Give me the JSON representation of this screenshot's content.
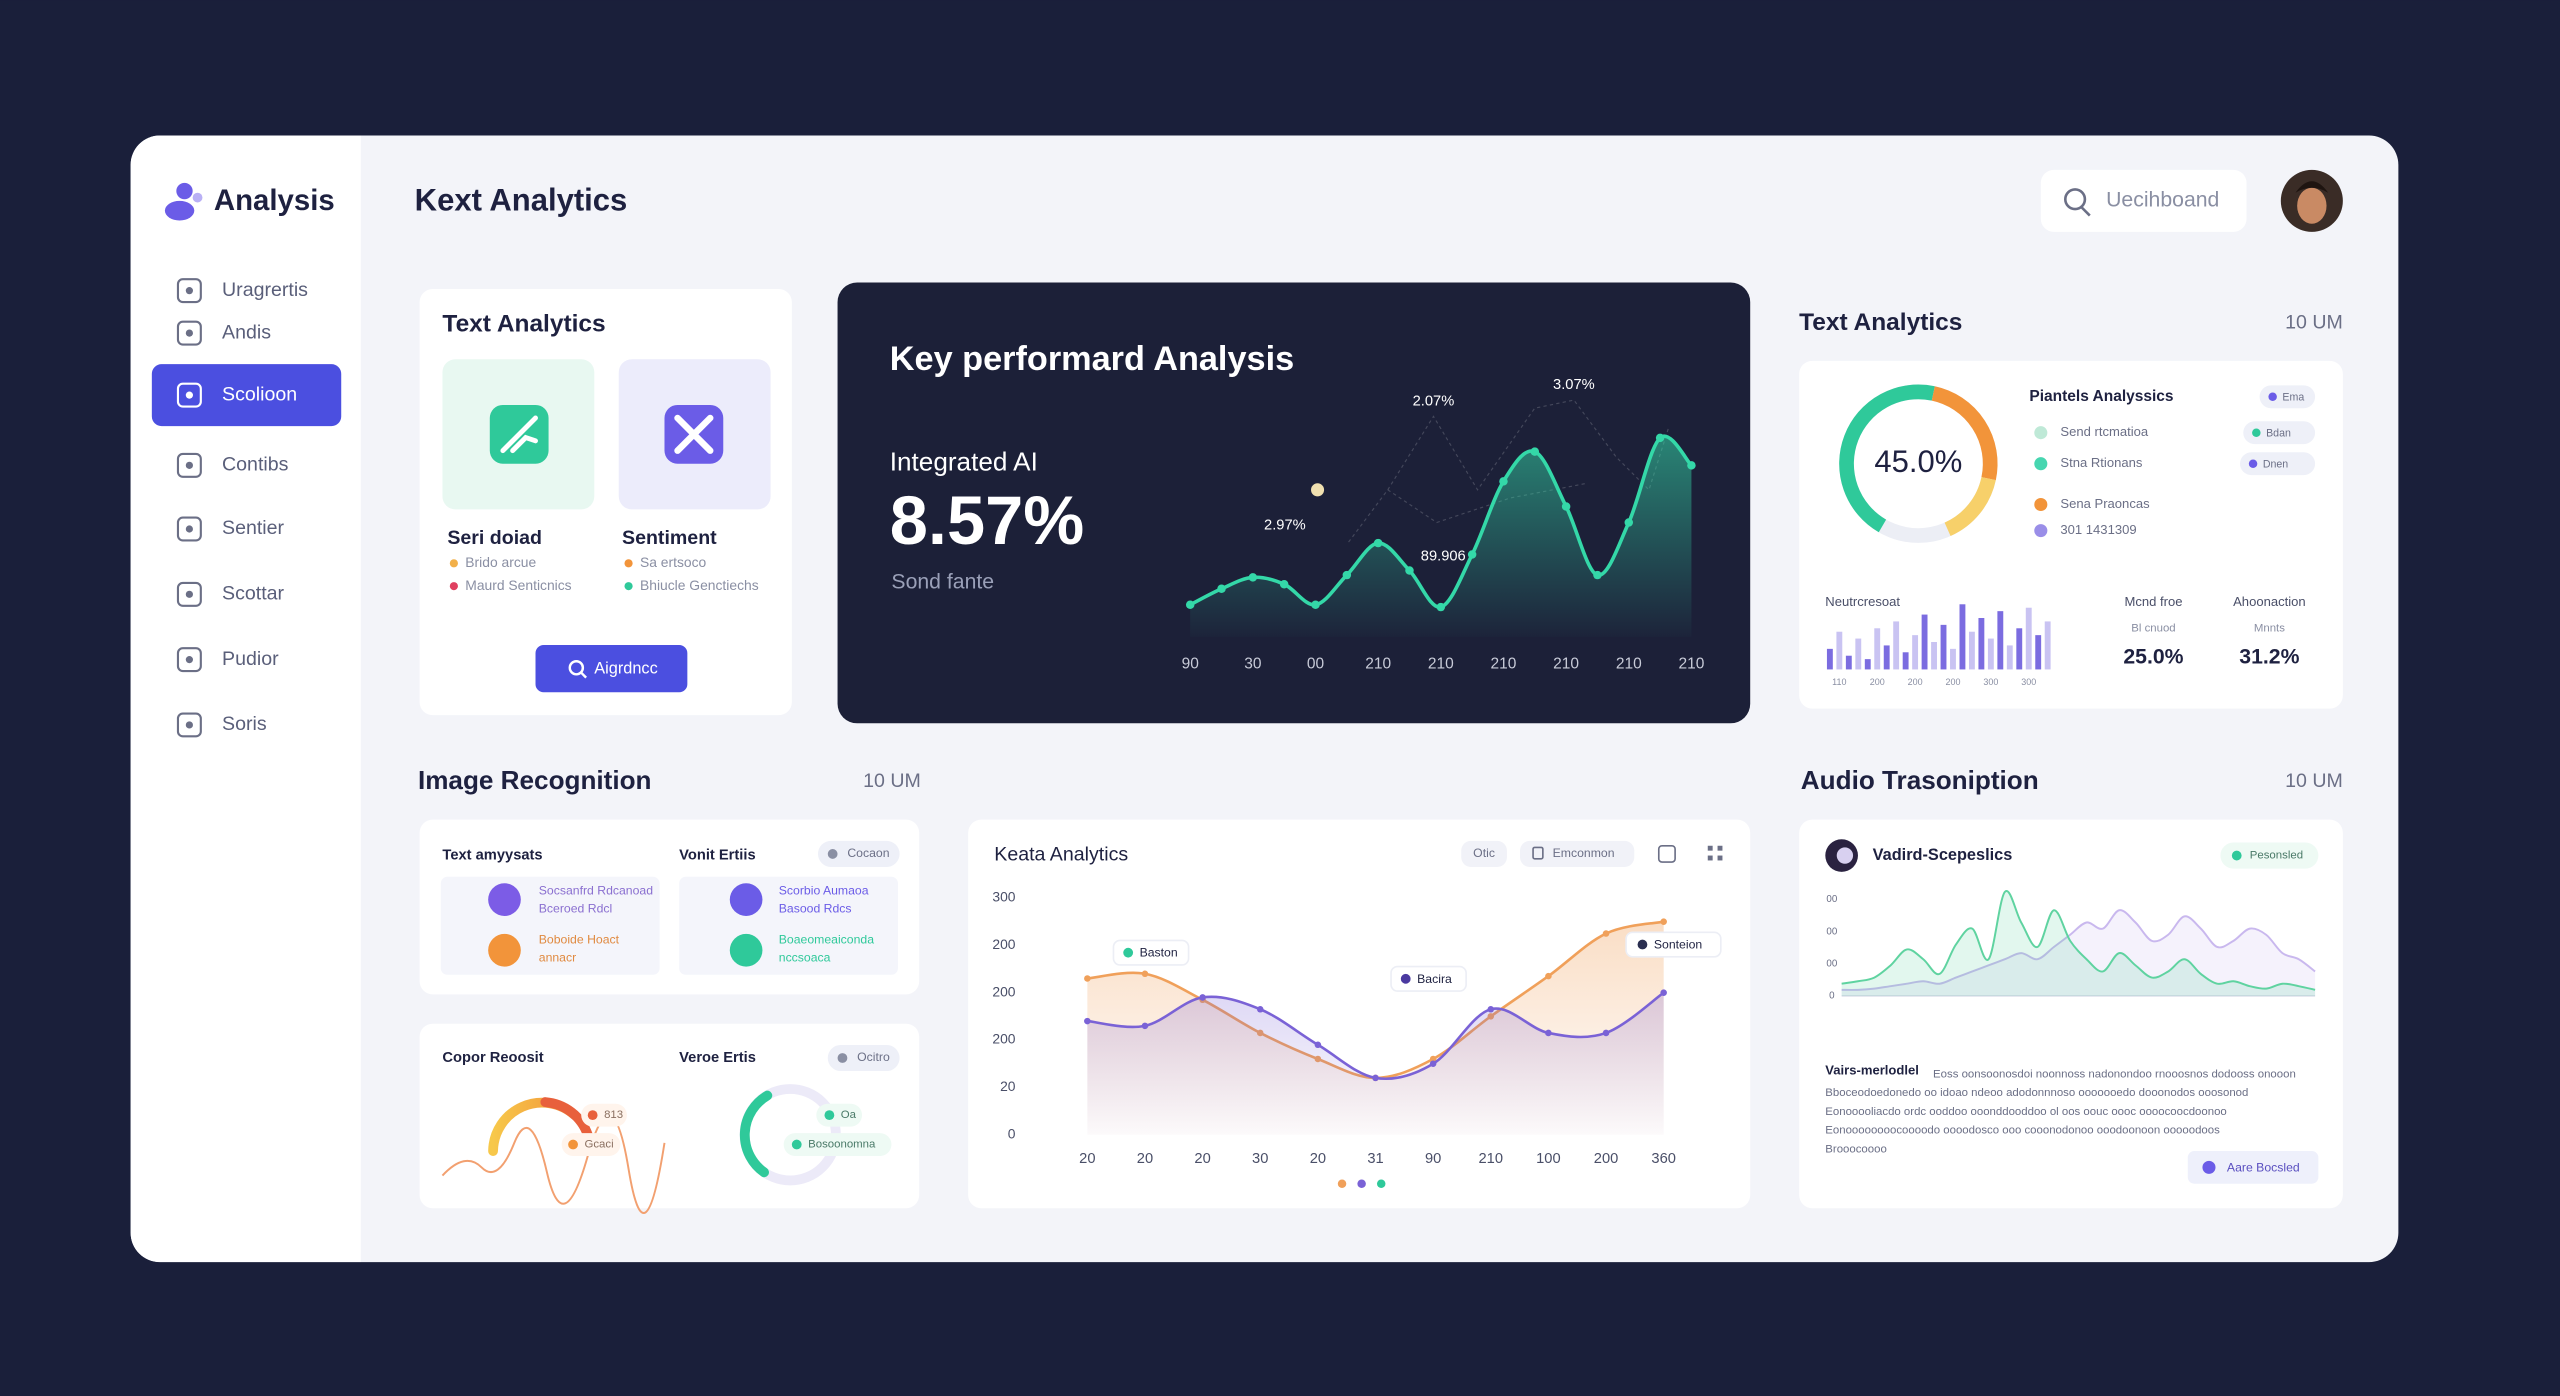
{
  "sidebar": {
    "brand": "Analysis",
    "items": [
      "Uragrertis",
      "Andis",
      "Scolioon",
      "Contibs",
      "Sentier",
      "Scottar",
      "Pudior",
      "Soris"
    ],
    "active_index": 2
  },
  "header": {
    "title": "Kext Analytics",
    "search": "Uecihboand"
  },
  "text_card": {
    "title": "Text Analytics",
    "tiles": [
      {
        "label": "Seri doiad",
        "lines": [
          "Brido arcue",
          "Maurd Senticnics"
        ]
      },
      {
        "label": "Sentiment",
        "lines": [
          "Sa ertsoco",
          "Bhiucle Genctiechs"
        ]
      }
    ],
    "button": "Aigrdncc"
  },
  "kpi_card": {
    "title": "Key performard Analysis",
    "subtitle": "Integrated AI",
    "value": "8.57%",
    "caption": "Sond fante",
    "annotations": [
      "2.07%",
      "3.07%",
      "2.97%",
      "89.906"
    ],
    "chart": {
      "type": "area",
      "categories": [
        "90",
        null,
        "30",
        null,
        "00",
        null,
        "210",
        null,
        "210",
        null,
        "210",
        null,
        "210",
        null,
        "210",
        null,
        "210"
      ],
      "values": [
        14,
        21,
        26,
        23,
        14,
        27,
        41,
        29,
        13,
        36,
        68,
        81,
        57,
        27,
        50,
        87,
        75
      ],
      "ylim": [
        0,
        100
      ],
      "color": "#34d8a8"
    }
  },
  "right_panel": {
    "title": "Text Analytics",
    "meta": "10 UM",
    "donut": {
      "type": "pie",
      "center_label": "45.0%",
      "values": [
        45,
        25,
        15
      ],
      "colors": [
        "#2fc99a",
        "#f2943a",
        "#f7d06a"
      ],
      "legend_title": "Piantels Analyssics",
      "legend": [
        "Send rtcmatioa",
        "Stna Rtionans",
        "Sena Praoncas",
        "301 1431309"
      ],
      "chips": [
        "Ema",
        "Bdan",
        "Dnen"
      ]
    },
    "bars": {
      "type": "bar",
      "title": "Neutrcresoat",
      "categories": [
        null,
        "110",
        null,
        null,
        null,
        "200",
        null,
        null,
        null,
        "200",
        null,
        null,
        null,
        "200",
        null,
        null,
        null,
        "300",
        null,
        null,
        null,
        "300",
        null,
        null
      ],
      "values": [
        30,
        55,
        20,
        45,
        15,
        60,
        35,
        70,
        25,
        50,
        80,
        40,
        65,
        30,
        95,
        55,
        75,
        45,
        85,
        35,
        60,
        90,
        50,
        70
      ],
      "ylim": [
        0,
        100
      ],
      "colors": [
        "#7b6ce0",
        "#c9c3f2"
      ]
    },
    "stats": [
      {
        "title": "Mcnd froe",
        "sub": "Bl cnuod",
        "value": "25.0%"
      },
      {
        "title": "Ahoonaction",
        "sub": "Mnnts",
        "value": "31.2%"
      }
    ]
  },
  "image_recognition": {
    "title": "Image Recognition",
    "meta": "10 UM",
    "card_a": {
      "left_title": "Text amyysats",
      "left_items": [
        "Socsanfrd Rdcanoad",
        "Bceroed Rdcl",
        "Boboide Hoact",
        "annacr"
      ],
      "right_title": "Vonit Ertiis",
      "right_chip": "Cocaon",
      "right_items": [
        "Scorbio Aumaoa",
        "Basood Rdcs",
        "Boaeomeaiconda",
        "nccsoaca"
      ]
    },
    "card_b": {
      "left_title": "Copor Reoosit",
      "left_chips": [
        "813",
        "Gcaci"
      ],
      "right_title": "Veroe Ertis",
      "right_chip": "Ocitro",
      "right_chips": [
        "Oa",
        "Bosoonomna"
      ]
    }
  },
  "keata_chart": {
    "type": "line",
    "title": "Keata Analytics",
    "chips": [
      "Otic",
      "Emconmon"
    ],
    "y_labels": [
      "300",
      "200",
      "200",
      "200",
      "20",
      "0"
    ],
    "categories": [
      "20",
      "20",
      "20",
      "30",
      "20",
      "31",
      "90",
      "210",
      "100",
      "200",
      "360"
    ],
    "ylim": [
      0,
      100
    ],
    "series": [
      {
        "color": "#f0a05a",
        "values": [
          66,
          68,
          57,
          43,
          32,
          24,
          32,
          50,
          67,
          85,
          90
        ]
      },
      {
        "color": "#7a62d6",
        "values": [
          48,
          46,
          58,
          53,
          38,
          24,
          30,
          53,
          43,
          43,
          60
        ]
      }
    ],
    "annotations": [
      "Baston",
      "Bacira",
      "Sonteion"
    ]
  },
  "audio": {
    "title": "Audio Trasoniption",
    "meta": "10 UM",
    "card_title": "Vadird-Scepeslics",
    "chip": "Pesonsled",
    "chart": {
      "type": "area",
      "y_labels": [
        "00",
        "00",
        "00",
        "0"
      ],
      "ylim": [
        0,
        100
      ],
      "series": [
        {
          "color": "#5fd3a0",
          "values": [
            10,
            12,
            15,
            25,
            38,
            30,
            18,
            42,
            55,
            30,
            85,
            60,
            40,
            70,
            45,
            30,
            20,
            35,
            25,
            15,
            20,
            30,
            18,
            10,
            12,
            8,
            6,
            10,
            8,
            5
          ]
        },
        {
          "color": "#c9b8ee",
          "values": [
            5,
            5,
            6,
            8,
            10,
            12,
            10,
            15,
            20,
            25,
            30,
            35,
            30,
            40,
            50,
            60,
            55,
            70,
            60,
            45,
            50,
            65,
            55,
            40,
            45,
            55,
            50,
            35,
            30,
            20
          ]
        }
      ]
    },
    "heading": "Vairs-merlodlel",
    "paragraph": [
      "Eoss oonsoonosdoi noonnoss nadonondoo rnooosnos dodooss onooon",
      "Bboceodoedonedo oo idoao ndeoo adodonnnoso ooooooedo dooonodos ooosonod",
      "Eonooooliacdo ordc ooddoo ooonddooddoo ol oos oouc oooc oooocoocdoonoo",
      "Eonoooooooocoooodo oooodosco ooo cooonodonoo ooodoonoon ooooodoos",
      "Brooocoooo"
    ],
    "button": "Aare Bocsled"
  }
}
